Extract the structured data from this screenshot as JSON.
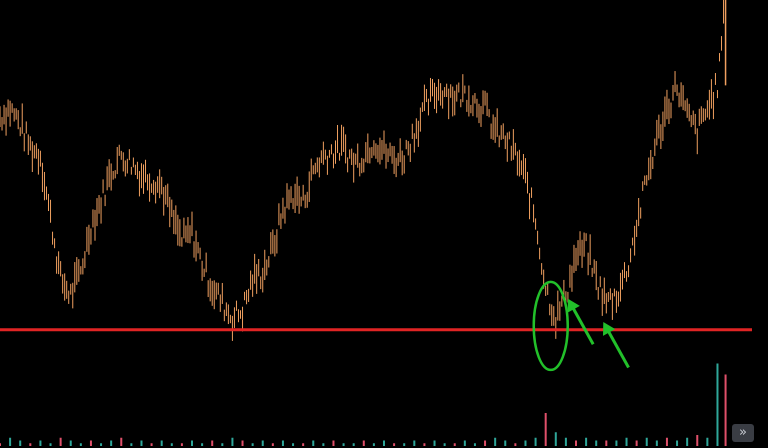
{
  "chart_data": {
    "type": "line",
    "title": "",
    "xlabel": "",
    "ylabel": "",
    "x": [
      0,
      10,
      20,
      30,
      40,
      50,
      60,
      70,
      80,
      90,
      100,
      110,
      120,
      130,
      140,
      150,
      160,
      170,
      180,
      190,
      200,
      210,
      220,
      230,
      240,
      250,
      260,
      270,
      280,
      290,
      300,
      310,
      320,
      330,
      340,
      350,
      360,
      370,
      380,
      390,
      400,
      410,
      420,
      430,
      440,
      450,
      460,
      470,
      480,
      490,
      500,
      510,
      520,
      530,
      540,
      550,
      560,
      570,
      580,
      590,
      600,
      610,
      620,
      630,
      640,
      650,
      660,
      670,
      680,
      690,
      700,
      710,
      718
    ],
    "ylim": [
      0,
      100
    ],
    "xlim": [
      0,
      760
    ],
    "series": [
      {
        "name": "",
        "color": "#f0a060",
        "values": [
          70,
          72,
          68,
          62,
          60,
          44,
          28,
          24,
          30,
          42,
          48,
          56,
          60,
          58,
          55,
          54,
          52,
          44,
          38,
          40,
          32,
          26,
          22,
          18,
          20,
          28,
          30,
          36,
          46,
          50,
          48,
          56,
          60,
          61,
          62,
          58,
          60,
          64,
          61,
          59,
          60,
          66,
          72,
          76,
          77,
          75,
          76,
          74,
          72,
          66,
          64,
          60,
          54,
          43,
          26,
          18,
          24,
          34,
          36,
          28,
          22,
          24,
          30,
          42,
          54,
          64,
          72,
          78,
          70,
          66,
          72,
          78,
          100
        ]
      }
    ],
    "reference_line": {
      "value": 15,
      "color": "#e02424"
    },
    "volume": {
      "values": [
        1,
        3,
        2,
        1,
        2,
        1,
        3,
        2,
        1,
        2,
        1,
        2,
        3,
        1,
        2,
        1,
        2,
        1,
        1,
        2,
        1,
        2,
        1,
        3,
        2,
        1,
        2,
        1,
        2,
        1,
        1,
        2,
        1,
        2,
        1,
        1,
        2,
        1,
        2,
        1,
        1,
        2,
        1,
        2,
        1,
        1,
        2,
        1,
        2,
        3,
        2,
        1,
        2,
        3,
        12,
        5,
        3,
        2,
        3,
        2,
        2,
        2,
        3,
        2,
        3,
        2,
        3,
        2,
        3,
        4,
        3,
        30,
        26
      ],
      "ymax": 40
    },
    "annotations": [
      {
        "type": "ellipse",
        "x": 545,
        "y": 16,
        "color": "#22c02a"
      },
      {
        "type": "arrow",
        "x": 562,
        "y": 23,
        "color": "#22c02a"
      },
      {
        "type": "arrow",
        "x": 597,
        "y": 17,
        "color": "#22c02a"
      }
    ]
  },
  "controls": {
    "scroll_right_label": "»"
  }
}
